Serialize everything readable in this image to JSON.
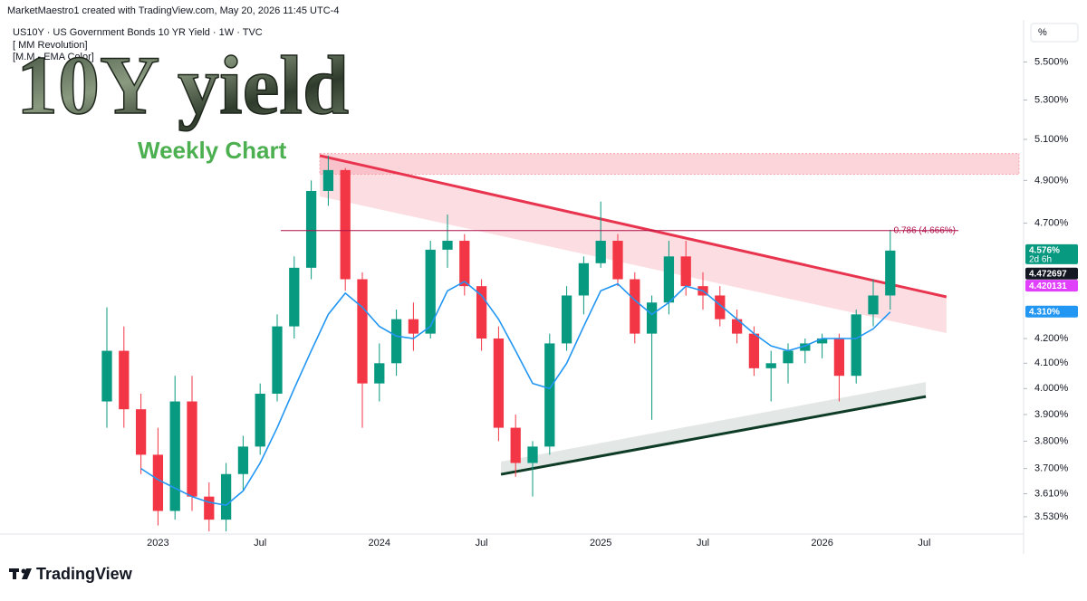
{
  "header": {
    "credit": "MarketMaestro1 created with TradingView.com, May 20, 2026 11:45 UTC-4"
  },
  "chart_data": {
    "type": "candlestick",
    "symbol": "US10Y · US Government Bonds 10 YR Yield · 1W · TVC",
    "indicators": [
      "[ MM Revolution]",
      "[M.M - EMA Color]"
    ],
    "title": "10Y yield",
    "subtitle": "Weekly Chart",
    "unit": "%",
    "categories": [
      null,
      null,
      null,
      "2023",
      null,
      null,
      null,
      null,
      null,
      "Jul",
      null,
      null,
      null,
      null,
      null,
      null,
      "2024",
      null,
      null,
      null,
      null,
      null,
      "Jul",
      null,
      null,
      null,
      null,
      null,
      null,
      "2025",
      null,
      null,
      null,
      null,
      null,
      "Jul",
      null,
      null,
      null,
      null,
      null,
      null,
      "2026",
      null,
      null,
      null,
      null,
      null,
      "Jul",
      null,
      null
    ],
    "open": [
      3.95,
      4.15,
      3.92,
      3.75,
      3.55,
      3.95,
      3.6,
      3.52,
      3.68,
      3.78,
      3.98,
      4.25,
      4.5,
      4.85,
      4.95,
      4.45,
      4.02,
      4.1,
      4.28,
      4.22,
      4.58,
      4.62,
      4.42,
      4.2,
      3.85,
      3.72,
      3.78,
      4.18,
      4.38,
      4.52,
      4.62,
      4.45,
      4.22,
      4.35,
      4.55,
      4.42,
      4.38,
      4.28,
      4.22,
      4.08,
      4.1,
      4.15,
      4.18,
      4.2,
      4.05,
      4.3,
      4.38,
      null,
      null,
      null,
      null
    ],
    "high": [
      4.33,
      4.25,
      3.98,
      3.85,
      4.05,
      4.05,
      3.65,
      3.72,
      3.82,
      4.02,
      4.3,
      4.55,
      4.9,
      5.02,
      4.96,
      4.48,
      4.18,
      4.32,
      4.35,
      4.62,
      4.74,
      4.65,
      4.45,
      4.25,
      3.9,
      3.8,
      4.22,
      4.42,
      4.55,
      4.8,
      4.65,
      4.48,
      4.38,
      4.62,
      4.62,
      4.48,
      4.42,
      4.32,
      4.25,
      4.15,
      4.18,
      4.2,
      4.22,
      4.22,
      4.32,
      4.45,
      4.67,
      null,
      null,
      null,
      null
    ],
    "low": [
      3.85,
      3.85,
      3.68,
      3.5,
      3.52,
      3.55,
      3.48,
      3.48,
      3.62,
      3.75,
      3.95,
      4.2,
      4.45,
      4.78,
      4.4,
      3.85,
      3.95,
      4.05,
      4.15,
      4.2,
      4.5,
      4.38,
      4.15,
      3.8,
      3.67,
      3.6,
      3.75,
      4.15,
      4.3,
      4.5,
      4.42,
      4.18,
      3.88,
      4.3,
      4.38,
      4.32,
      4.25,
      4.18,
      4.05,
      3.95,
      4.02,
      4.1,
      4.12,
      3.95,
      4.02,
      4.25,
      4.32,
      null,
      null,
      null,
      null
    ],
    "close": [
      4.15,
      3.92,
      3.75,
      3.55,
      3.95,
      3.6,
      3.52,
      3.68,
      3.78,
      3.98,
      4.25,
      4.5,
      4.85,
      4.95,
      4.45,
      4.02,
      4.1,
      4.28,
      4.22,
      4.58,
      4.62,
      4.42,
      4.2,
      3.85,
      3.72,
      3.78,
      4.18,
      4.38,
      4.52,
      4.62,
      4.45,
      4.22,
      4.35,
      4.55,
      4.42,
      4.38,
      4.28,
      4.22,
      4.08,
      4.1,
      4.15,
      4.18,
      4.2,
      4.05,
      4.3,
      4.38,
      4.576,
      null,
      null,
      null,
      null
    ],
    "up_color": "#089981",
    "down_color": "#f23645",
    "series": [
      {
        "name": "EMA",
        "color": "#2196f3",
        "values": [
          null,
          null,
          3.7,
          3.66,
          3.63,
          3.6,
          3.58,
          3.57,
          3.62,
          3.72,
          3.85,
          4.0,
          4.15,
          4.3,
          4.39,
          4.33,
          4.25,
          4.21,
          4.2,
          4.25,
          4.4,
          4.44,
          4.38,
          4.28,
          4.15,
          4.02,
          4.0,
          4.1,
          4.25,
          4.4,
          4.43,
          4.36,
          4.3,
          4.35,
          4.42,
          4.4,
          4.34,
          4.28,
          4.22,
          4.17,
          4.15,
          4.17,
          4.2,
          4.2,
          4.2,
          4.24,
          4.31,
          null,
          null,
          null,
          null
        ]
      }
    ],
    "trendlines": [
      {
        "color": "#e8344e",
        "x": [
          12.5,
          49.3
        ],
        "y": [
          5.02,
          4.374
        ]
      },
      {
        "color": "#0d3b26",
        "x": [
          23.14,
          48.09
        ],
        "y": [
          3.679,
          3.969
        ]
      }
    ],
    "zone": {
      "color": "#f7a1ad",
      "y": [
        4.93,
        5.03
      ]
    },
    "fib_level": {
      "value": 4.666,
      "label": "0.786 (4.666%)",
      "color": "#b0124a"
    },
    "price_badges": [
      {
        "value": 4.576,
        "label": "4.576%",
        "sublabel": "2d 6h",
        "color": "#089981"
      },
      {
        "value": 4.472697,
        "label": "4.472697",
        "color": "#131722"
      },
      {
        "value": 4.420131,
        "label": "4.420131",
        "color": "#e040fb"
      },
      {
        "value": 4.31,
        "label": "4.310%",
        "color": "#2196f3"
      }
    ],
    "log_scale": true,
    "ylim": [
      3.471,
      5.69
    ],
    "yticks": [
      {
        "value": 5.5,
        "label": "5.500%"
      },
      {
        "value": 5.3,
        "label": "5.300%"
      },
      {
        "value": 5.1,
        "label": "5.100%"
      },
      {
        "value": 4.9,
        "label": "4.900%"
      },
      {
        "value": 4.7,
        "label": "4.700%"
      },
      {
        "value": 4.2,
        "label": "4.200%"
      },
      {
        "value": 4.1,
        "label": "4.100%"
      },
      {
        "value": 4.0,
        "label": "4.000%"
      },
      {
        "value": 3.9,
        "label": "3.900%"
      },
      {
        "value": 3.8,
        "label": "3.800%"
      },
      {
        "value": 3.7,
        "label": "3.700%"
      },
      {
        "value": 3.61,
        "label": "3.610%"
      },
      {
        "value": 3.53,
        "label": "3.530%"
      }
    ]
  },
  "footer": {
    "brand": "TradingView"
  }
}
